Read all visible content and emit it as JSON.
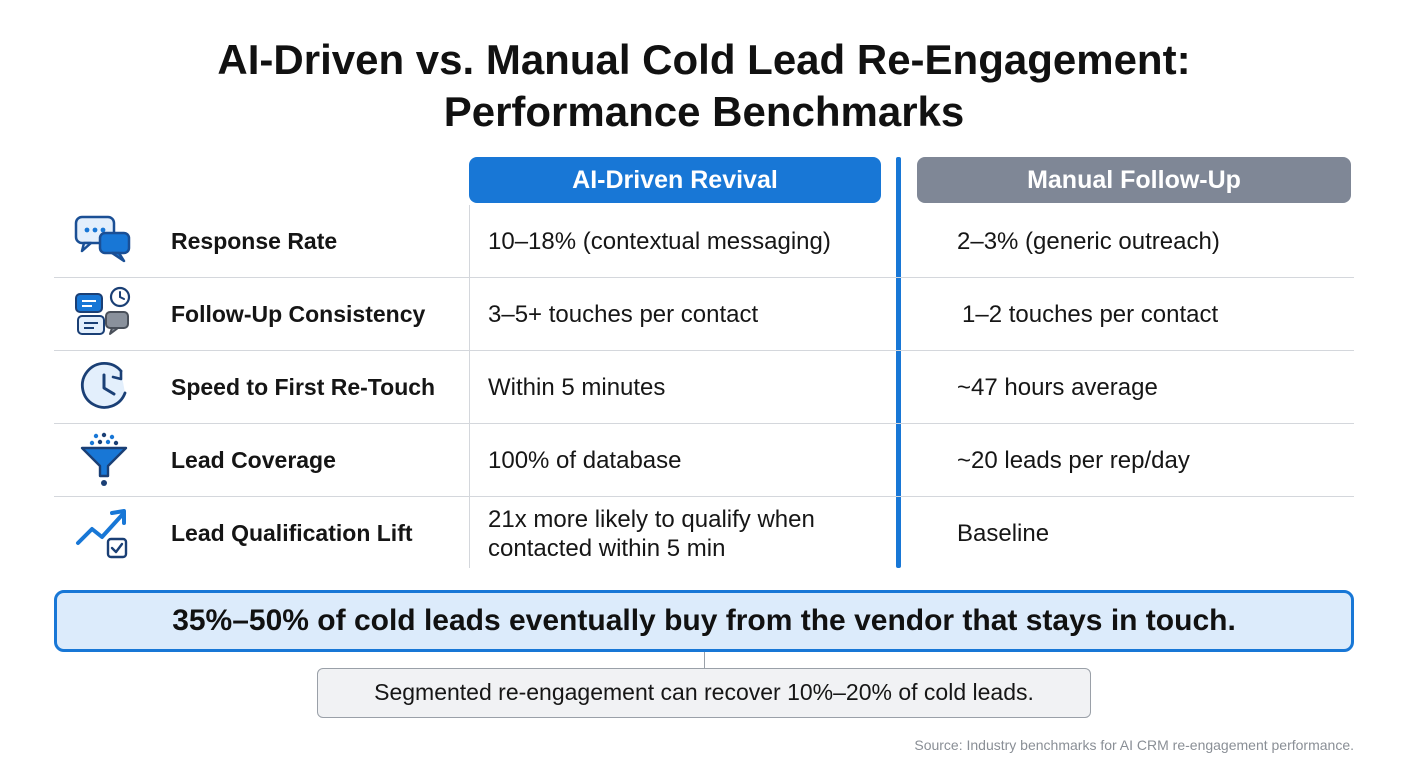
{
  "title": {
    "line1": "AI-Driven vs. Manual Cold Lead Re-Engagement:",
    "line2": "Performance Benchmarks"
  },
  "columns": {
    "ai": "AI-Driven Revival",
    "manual": "Manual Follow-Up"
  },
  "accent_color": "#1877d6",
  "manual_color": "#7f8796",
  "rows": [
    {
      "icon": "chat-bubbles-icon",
      "metric": "Response Rate",
      "ai": "10–18% (contextual messaging)",
      "manual": "2–3% (generic outreach)"
    },
    {
      "icon": "messages-clock-icon",
      "metric": "Follow-Up Consistency",
      "ai": "3–5+ touches per contact",
      "manual": "1–2 touches per contact"
    },
    {
      "icon": "clock-icon",
      "metric": "Speed to First Re-Touch",
      "ai": "Within 5 minutes",
      "manual": "~47 hours average"
    },
    {
      "icon": "funnel-icon",
      "metric": "Lead Coverage",
      "ai": "100% of database",
      "manual": "~20 leads per rep/day"
    },
    {
      "icon": "trend-up-check-icon",
      "metric": "Lead Qualification Lift",
      "ai": "21x more likely to qualify when contacted within 5 min",
      "manual": "Baseline"
    }
  ],
  "banner": "35%–50% of cold leads eventually buy from the vendor that stays in touch.",
  "note": "Segmented re-engagement can recover 10%–20% of cold leads.",
  "source": "Source: Industry benchmarks for AI CRM re-engagement performance."
}
